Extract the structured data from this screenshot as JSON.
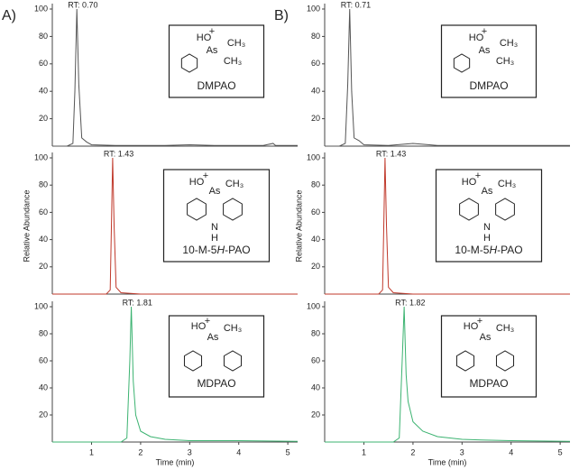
{
  "panel_labels": [
    "A)",
    "B)"
  ],
  "chart_data": [
    {
      "type": "line",
      "panel_label": "A)",
      "annotation": "RT: 0.70",
      "compound": [
        "DMPAO"
      ],
      "structure_labels": [
        "HO",
        "+",
        "As",
        "CH₃",
        "CH₃"
      ],
      "x": [
        0.2,
        0.5,
        0.62,
        0.66,
        0.7,
        0.74,
        0.8,
        0.9,
        1.0,
        1.5,
        2.0,
        2.5,
        3.0,
        3.5,
        4.0,
        4.5,
        4.7,
        4.75,
        5.2
      ],
      "series": [
        {
          "color": "#555555",
          "values": [
            0,
            0,
            2,
            40,
            100,
            45,
            6,
            3,
            1,
            0.5,
            0.5,
            0.5,
            1,
            0.5,
            0.5,
            0.5,
            2,
            0.5,
            0.5
          ]
        }
      ],
      "xlim": [
        0.2,
        5.2
      ],
      "ylim": [
        0,
        100
      ],
      "yticks": [
        20,
        40,
        60,
        80,
        100
      ]
    },
    {
      "type": "line",
      "annotation": "RT: 1.43",
      "compound": [
        "10-M-5",
        "H",
        "-PAO"
      ],
      "structure_labels": [
        "HO",
        "+",
        "As",
        "CH₃",
        "N",
        "H"
      ],
      "ylabel": "Relative Abundance",
      "x": [
        0.2,
        1.3,
        1.38,
        1.41,
        1.43,
        1.46,
        1.5,
        1.6,
        2.0,
        3.0,
        4.0,
        5.2
      ],
      "series": [
        {
          "color": "#c0392b",
          "values": [
            0,
            0,
            3,
            60,
            100,
            50,
            5,
            1,
            0,
            0,
            0,
            0
          ]
        }
      ],
      "xlim": [
        0.2,
        5.2
      ],
      "ylim": [
        0,
        100
      ],
      "yticks": [
        20,
        40,
        60,
        80,
        100
      ]
    },
    {
      "type": "line",
      "annotation": "RT: 1.81",
      "compound": [
        "MDPAO"
      ],
      "structure_labels": [
        "HO",
        "+",
        "As",
        "CH₃"
      ],
      "xlabel": "Time (min)",
      "x": [
        0.2,
        1.6,
        1.72,
        1.78,
        1.81,
        1.85,
        1.9,
        2.0,
        2.2,
        2.5,
        3.0,
        4.0,
        5.2
      ],
      "series": [
        {
          "color": "#3cb371",
          "values": [
            0,
            0,
            3,
            60,
            100,
            45,
            20,
            8,
            4,
            2,
            1,
            1,
            0.5
          ]
        }
      ],
      "xlim": [
        0.2,
        5.2
      ],
      "ylim": [
        0,
        100
      ],
      "yticks": [
        20,
        40,
        60,
        80,
        100
      ],
      "xticks": [
        1,
        2,
        3,
        4,
        5
      ]
    },
    {
      "type": "line",
      "panel_label": "B)",
      "annotation": "RT: 0.71",
      "compound": [
        "DMPAO"
      ],
      "structure_labels": [
        "HO",
        "+",
        "As",
        "CH₃",
        "CH₃"
      ],
      "x": [
        0.2,
        0.5,
        0.62,
        0.67,
        0.71,
        0.75,
        0.8,
        0.9,
        1.0,
        1.5,
        2.0,
        2.5,
        3.0,
        3.5,
        4.0,
        4.5,
        5.2
      ],
      "series": [
        {
          "color": "#555555",
          "values": [
            0,
            0,
            2,
            45,
            100,
            40,
            6,
            4,
            1,
            0.5,
            2,
            0.5,
            0.5,
            0.5,
            0.5,
            0.5,
            0.5
          ]
        }
      ],
      "xlim": [
        0.2,
        5.2
      ],
      "ylim": [
        0,
        100
      ],
      "yticks": [
        20,
        40,
        60,
        80,
        100
      ]
    },
    {
      "type": "line",
      "annotation": "RT: 1.43",
      "compound": [
        "10-M-5",
        "H",
        "-PAO"
      ],
      "structure_labels": [
        "HO",
        "+",
        "As",
        "CH₃",
        "N",
        "H"
      ],
      "ylabel": "Relative Abundance",
      "x": [
        0.2,
        1.3,
        1.38,
        1.41,
        1.43,
        1.46,
        1.5,
        1.6,
        2.0,
        3.0,
        4.0,
        5.2
      ],
      "series": [
        {
          "color": "#c0392b",
          "values": [
            0,
            0,
            3,
            60,
            100,
            50,
            5,
            1,
            0,
            0,
            0,
            0
          ]
        }
      ],
      "xlim": [
        0.2,
        5.2
      ],
      "ylim": [
        0,
        100
      ],
      "yticks": [
        20,
        40,
        60,
        80,
        100
      ]
    },
    {
      "type": "line",
      "annotation": "RT: 1.82",
      "compound": [
        "MDPAO"
      ],
      "structure_labels": [
        "HO",
        "+",
        "As",
        "CH₃"
      ],
      "xlabel": "Time (min)",
      "x": [
        0.2,
        1.6,
        1.72,
        1.78,
        1.82,
        1.86,
        1.9,
        2.0,
        2.2,
        2.5,
        3.0,
        3.4,
        4.0,
        5.2
      ],
      "series": [
        {
          "color": "#3cb371",
          "values": [
            0,
            0,
            3,
            60,
            100,
            50,
            30,
            15,
            8,
            4,
            2,
            1.5,
            1,
            0.5
          ]
        }
      ],
      "xlim": [
        0.2,
        5.2
      ],
      "ylim": [
        0,
        100
      ],
      "yticks": [
        20,
        40,
        60,
        80,
        100
      ],
      "xticks": [
        1,
        2,
        3,
        4,
        5
      ]
    }
  ]
}
